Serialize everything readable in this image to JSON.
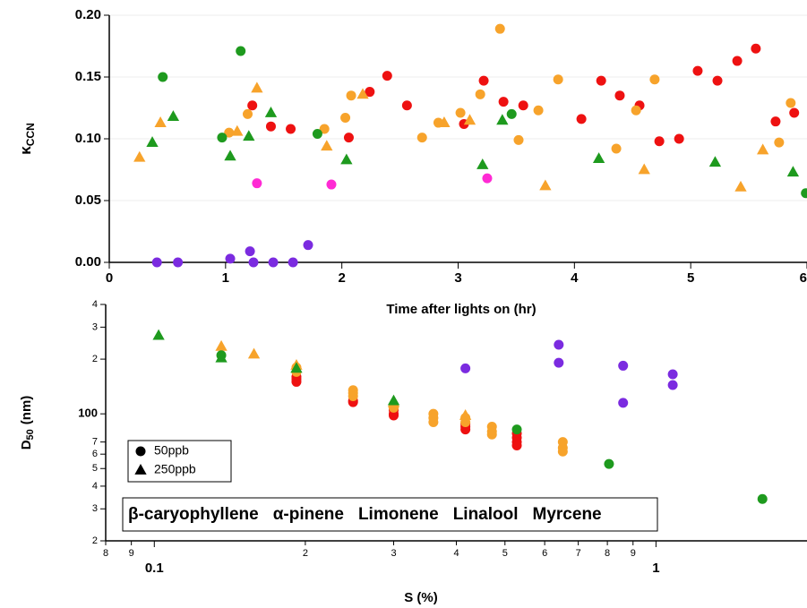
{
  "chart_data": [
    {
      "type": "scatter",
      "xlabel": "Time after lights on (hr)",
      "ylabel": {
        "main": "κ",
        "sub": "CCN"
      },
      "xlim": [
        0,
        6
      ],
      "ylim": [
        0,
        0.2
      ],
      "xticks": [
        0,
        1,
        2,
        3,
        4,
        5,
        6
      ],
      "yticks": [
        {
          "value": 0,
          "label": "0.00"
        },
        0.05,
        {
          "value": 0.1,
          "label": "0.10"
        },
        0.15,
        {
          "value": 0.2,
          "label": "0.20"
        }
      ],
      "grid": true,
      "series": [
        {
          "color": "#7b2be0",
          "groups": [
            {
              "shape": "circle",
              "x": [
                0.41,
                0.59,
                1.04,
                1.21,
                1.24,
                1.41,
                1.58,
                1.71
              ],
              "values": [
                0.0,
                0.0,
                0.003,
                0.009,
                0.0,
                0.0,
                0.0,
                0.014
              ]
            }
          ]
        },
        {
          "color": "#ee1111",
          "groups": [
            {
              "shape": "circle",
              "x": [
                1.23,
                1.39,
                1.56,
                2.06,
                2.24,
                2.39,
                2.56,
                3.05,
                3.22,
                3.39,
                3.56,
                4.06,
                4.23,
                4.39,
                4.56,
                4.73,
                4.9,
                5.06,
                5.23,
                5.4,
                5.56,
                5.73,
                5.89
              ],
              "values": [
                0.127,
                0.11,
                0.108,
                0.101,
                0.138,
                0.151,
                0.127,
                0.112,
                0.147,
                0.13,
                0.127,
                0.116,
                0.147,
                0.135,
                0.127,
                0.098,
                0.1,
                0.155,
                0.147,
                0.163,
                0.173,
                0.114,
                0.121
              ]
            }
          ]
        },
        {
          "color": "#ff2ad4",
          "groups": [
            {
              "shape": "circle",
              "x": [
                1.27,
                1.91,
                3.25
              ],
              "values": [
                0.064,
                0.063,
                0.068
              ]
            }
          ]
        },
        {
          "color": "#f7a32b",
          "groups": [
            {
              "shape": "circle",
              "x": [
                1.03,
                1.19,
                1.85,
                2.03,
                2.08,
                2.69,
                2.83,
                3.02,
                3.19,
                3.36,
                3.52,
                3.69,
                3.86,
                4.36,
                4.53,
                4.69,
                5.76,
                5.86
              ],
              "values": [
                0.105,
                0.12,
                0.108,
                0.117,
                0.135,
                0.101,
                0.113,
                0.121,
                0.136,
                0.189,
                0.099,
                0.123,
                0.148,
                0.092,
                0.123,
                0.148,
                0.097,
                0.129
              ]
            },
            {
              "shape": "triangle",
              "x": [
                0.26,
                0.44,
                1.1,
                1.27,
                1.87,
                2.18,
                2.88,
                3.1,
                3.75,
                4.6,
                5.43,
                5.62
              ],
              "values": [
                0.085,
                0.113,
                0.106,
                0.141,
                0.094,
                0.136,
                0.113,
                0.115,
                0.062,
                0.075,
                0.061,
                0.091
              ]
            }
          ]
        },
        {
          "color": "#1e9a1e",
          "groups": [
            {
              "shape": "circle",
              "x": [
                0.46,
                0.97,
                1.13,
                1.79,
                3.46,
                5.99
              ],
              "values": [
                0.15,
                0.101,
                0.171,
                0.104,
                0.12,
                0.056
              ]
            },
            {
              "shape": "triangle",
              "x": [
                0.37,
                0.55,
                1.04,
                1.2,
                1.39,
                2.04,
                3.21,
                3.38,
                4.21,
                5.21,
                5.88
              ],
              "values": [
                0.097,
                0.118,
                0.086,
                0.102,
                0.121,
                0.083,
                0.079,
                0.115,
                0.084,
                0.081,
                0.073
              ]
            }
          ]
        }
      ]
    },
    {
      "type": "scatter",
      "xlabel": "S (%)",
      "ylabel": {
        "main": "D",
        "sub": "50",
        "unit": "(nm)"
      },
      "xscale": "log",
      "yscale": "log",
      "xlim": [
        0.08,
        2
      ],
      "ylim": [
        20,
        400
      ],
      "xticks": [
        {
          "value": 0.08,
          "label": "8"
        },
        {
          "value": 0.09,
          "label": "9"
        },
        0.1,
        {
          "value": 0.2,
          "label": "2"
        },
        {
          "value": 0.3,
          "label": "3"
        },
        {
          "value": 0.4,
          "label": "4"
        },
        {
          "value": 0.5,
          "label": "5"
        },
        {
          "value": 0.6,
          "label": "6"
        },
        {
          "value": 0.7,
          "label": "7"
        },
        {
          "value": 0.8,
          "label": "8"
        },
        {
          "value": 0.9,
          "label": "9"
        },
        1
      ],
      "yticks": [
        {
          "value": 20,
          "label": "2"
        },
        {
          "value": 30,
          "label": "3"
        },
        {
          "value": 40,
          "label": "4"
        },
        {
          "value": 50,
          "label": "5"
        },
        {
          "value": 60,
          "label": "6"
        },
        {
          "value": 70,
          "label": "7"
        },
        100,
        {
          "value": 200,
          "label": "2"
        },
        {
          "value": 300,
          "label": "3"
        },
        {
          "value": 400,
          "label": "4"
        }
      ],
      "markers": [
        {
          "label": "50ppb",
          "shape": "circle"
        },
        {
          "label": "250ppb",
          "shape": "triangle"
        }
      ],
      "series": [
        {
          "name": "β-caryophyllene",
          "color": "#7b2be0",
          "groups": [
            {
              "shape": "circle",
              "x": [
                0.417,
                0.64,
                0.64,
                0.86,
                0.86,
                1.08,
                1.08
              ],
              "values": [
                178,
                240,
                191,
                184,
                115,
                165,
                144
              ]
            }
          ]
        },
        {
          "name": "α-pinene",
          "color": "#ee1111",
          "groups": [
            {
              "shape": "circle",
              "x": [
                0.192,
                0.192,
                0.192,
                0.249,
                0.249,
                0.3,
                0.3,
                0.3,
                0.417,
                0.417,
                0.417,
                0.528,
                0.528,
                0.528,
                0.528
              ],
              "values": [
                160,
                155,
                150,
                118,
                116,
                105,
                100,
                98,
                88,
                85,
                82,
                78,
                74,
                70,
                67
              ]
            }
          ]
        },
        {
          "name": "Limonene",
          "color": "#ff2ad4",
          "groups": []
        },
        {
          "name": "Linalool",
          "color": "#f7a32b",
          "groups": [
            {
              "shape": "circle",
              "x": [
                0.192,
                0.192,
                0.249,
                0.249,
                0.249,
                0.3,
                0.3,
                0.36,
                0.36,
                0.36,
                0.417,
                0.417,
                0.471,
                0.471,
                0.471,
                0.652,
                0.652,
                0.652
              ],
              "values": [
                180,
                170,
                135,
                130,
                125,
                110,
                108,
                100,
                95,
                90,
                95,
                90,
                85,
                80,
                77,
                70,
                65,
                62
              ]
            },
            {
              "shape": "triangle",
              "x": [
                0.136,
                0.158,
                0.192,
                0.3,
                0.417
              ],
              "values": [
                235,
                213,
                185,
                115,
                98
              ]
            }
          ]
        },
        {
          "name": "Myrcene",
          "color": "#1e9a1e",
          "groups": [
            {
              "shape": "circle",
              "x": [
                0.136,
                0.528,
                0.806,
                1.63
              ],
              "values": [
                210,
                82,
                53,
                34
              ]
            },
            {
              "shape": "triangle",
              "x": [
                0.102,
                0.136,
                0.192,
                0.3
              ],
              "values": [
                270,
                203,
                178,
                118
              ]
            }
          ]
        }
      ]
    }
  ]
}
